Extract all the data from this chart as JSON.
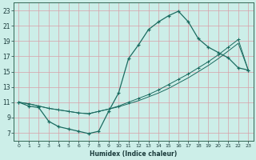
{
  "xlabel": "Humidex (Indice chaleur)",
  "bg_color": "#cceee8",
  "grid_color": "#d8a0a8",
  "line_color": "#1a6b60",
  "xlim": [
    -0.5,
    23.5
  ],
  "ylim": [
    6.0,
    24.0
  ],
  "xticks": [
    0,
    1,
    2,
    3,
    4,
    5,
    6,
    7,
    8,
    9,
    10,
    11,
    12,
    13,
    14,
    15,
    16,
    17,
    18,
    19,
    20,
    21,
    22,
    23
  ],
  "yticks": [
    7,
    9,
    11,
    13,
    15,
    17,
    19,
    21,
    23
  ],
  "curve1_x": [
    0,
    1,
    2,
    3,
    4,
    5,
    6,
    7,
    8,
    9,
    10,
    11,
    12,
    13,
    14,
    15,
    16,
    17,
    18,
    19,
    20,
    21,
    22,
    23
  ],
  "curve1_y": [
    11,
    10.5,
    10.3,
    8.5,
    7.8,
    7.5,
    7.2,
    6.9,
    7.2,
    9.8,
    12.2,
    16.7,
    18.5,
    20.5,
    21.5,
    22.3,
    22.9,
    21.5,
    19.3,
    18.2,
    17.5,
    16.8,
    15.5,
    15.2
  ],
  "curve2_x": [
    0,
    1,
    2,
    3,
    4,
    5,
    6,
    7,
    8,
    9,
    10,
    11,
    12,
    13,
    14,
    15,
    16,
    17,
    18,
    19,
    20,
    21,
    22,
    23
  ],
  "curve2_y": [
    11,
    10.8,
    10.5,
    10.2,
    10.0,
    9.8,
    9.6,
    9.5,
    9.8,
    10.1,
    10.5,
    11.0,
    11.5,
    12.0,
    12.6,
    13.3,
    14.0,
    14.7,
    15.5,
    16.3,
    17.2,
    18.2,
    19.2,
    15.2
  ],
  "curve3_x": [
    0,
    1,
    2,
    3,
    4,
    5,
    6,
    7,
    8,
    9,
    10,
    11,
    12,
    13,
    14,
    15,
    16,
    17,
    18,
    19,
    20,
    21,
    22,
    23
  ],
  "curve3_y": [
    11,
    10.8,
    10.5,
    10.2,
    10.0,
    9.8,
    9.6,
    9.5,
    9.8,
    10.1,
    10.4,
    10.8,
    11.2,
    11.7,
    12.2,
    12.8,
    13.5,
    14.2,
    15.0,
    15.8,
    16.7,
    17.7,
    18.7,
    15.2
  ]
}
